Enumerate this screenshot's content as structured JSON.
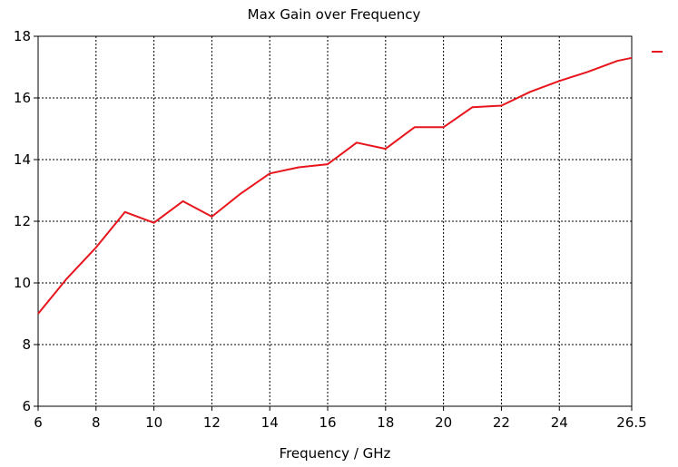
{
  "chart_data": {
    "type": "line",
    "title": "Max Gain over Frequency",
    "xlabel": "Frequency / GHz",
    "ylabel": "",
    "xlim": [
      6,
      26.5
    ],
    "ylim": [
      6,
      18
    ],
    "x_ticks": [
      6,
      8,
      10,
      12,
      14,
      16,
      18,
      20,
      22,
      24,
      26.5
    ],
    "x_tick_labels": [
      "6",
      "8",
      "10",
      "12",
      "14",
      "16",
      "18",
      "20",
      "22",
      "24",
      "26.5"
    ],
    "y_ticks": [
      6,
      8,
      10,
      12,
      14,
      16,
      18
    ],
    "y_tick_labels": [
      "6",
      "8",
      "10",
      "12",
      "14",
      "16",
      "18"
    ],
    "grid": true,
    "legend": "top-right (line sample only, no text)",
    "series": [
      {
        "color": "#e8141c",
        "x": [
          6,
          7,
          8,
          9,
          10,
          11,
          12,
          13,
          14,
          15,
          16,
          17,
          18,
          19,
          20,
          21,
          22,
          23,
          24,
          25,
          26,
          26.5
        ],
        "y": [
          9.0,
          10.15,
          11.15,
          12.3,
          11.95,
          12.65,
          12.15,
          12.9,
          13.55,
          13.75,
          13.85,
          14.55,
          14.35,
          15.05,
          15.05,
          15.7,
          15.75,
          16.2,
          16.55,
          16.85,
          17.2,
          17.3
        ]
      }
    ]
  }
}
